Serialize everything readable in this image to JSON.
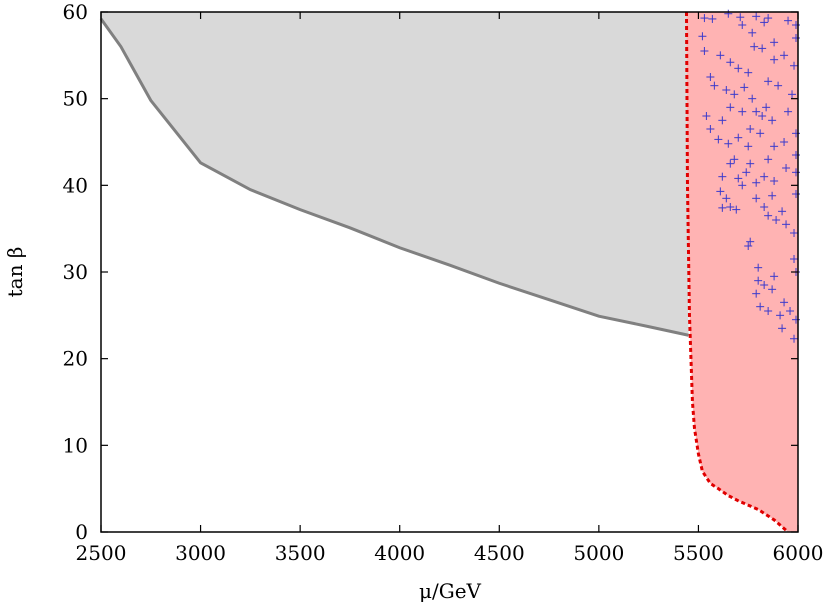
{
  "chart_data": {
    "type": "scatter",
    "x_label": "μ/GeV",
    "y_label": "tan β",
    "xlim": [
      2500,
      6000
    ],
    "ylim": [
      0,
      60
    ],
    "xticks": [
      2500,
      3000,
      3500,
      4000,
      4500,
      5000,
      5500,
      6000
    ],
    "yticks": [
      0,
      10,
      20,
      30,
      40,
      50,
      60
    ],
    "boundary": {
      "color": "#808080",
      "fill": "#d9d9d9",
      "x": [
        2500,
        2600,
        2750,
        3000,
        3250,
        3500,
        3750,
        4000,
        4250,
        4500,
        4750,
        5000,
        5250,
        5450
      ],
      "values": [
        59.2,
        56,
        49.8,
        42.6,
        39.5,
        37.2,
        35.1,
        32.8,
        30.8,
        28.7,
        26.8,
        24.9,
        23.7,
        22.7
      ]
    },
    "excluded": {
      "color": "#e00000",
      "fill": "#ffb3b3",
      "x": [
        5440,
        5445,
        5455,
        5470,
        5480,
        5500,
        5520,
        5560,
        5600,
        5650,
        5700,
        5800,
        5880,
        5950
      ],
      "values": [
        60,
        40,
        25,
        15,
        12,
        9,
        7,
        5.6,
        5,
        4.2,
        3.6,
        2.6,
        1.4,
        0
      ]
    },
    "points": {
      "color": "#3a3acc",
      "x": [
        5530,
        5570,
        5650,
        5710,
        5790,
        5850,
        5950,
        5990,
        5520,
        5720,
        5830,
        5770,
        5990,
        5880,
        5530,
        5610,
        5660,
        5780,
        5820,
        5930,
        5980,
        5700,
        5880,
        5750,
        5560,
        5580,
        5640,
        5730,
        5770,
        5850,
        5970,
        5900,
        5680,
        5790,
        5540,
        5560,
        5620,
        5660,
        5720,
        5820,
        5840,
        5870,
        5950,
        5990,
        5760,
        5600,
        5650,
        5700,
        5750,
        5810,
        5880,
        5930,
        5990,
        5680,
        5850,
        5620,
        5660,
        5700,
        5740,
        5790,
        5830,
        5880,
        5940,
        5990,
        5720,
        5760,
        5610,
        5640,
        5660,
        5690,
        5790,
        5830,
        5870,
        5920,
        5990,
        5620,
        5850,
        5940,
        5980,
        5760,
        5750,
        5890,
        5800,
        5980,
        5990,
        5880,
        5830,
        5790,
        5810,
        5850,
        5910,
        5930,
        5960,
        5990,
        5920,
        5980,
        5800,
        5870
      ],
      "values": [
        59.3,
        59.2,
        59.8,
        59.4,
        59.5,
        59.3,
        59.0,
        58.5,
        57.2,
        58.5,
        58.8,
        57.6,
        57.0,
        56.5,
        55.5,
        55.0,
        54.2,
        56.0,
        55.8,
        55.0,
        53.8,
        53.5,
        54.5,
        53.0,
        52.5,
        51.5,
        51.0,
        51.3,
        50.0,
        52.0,
        50.5,
        51.5,
        50.5,
        48.5,
        48.0,
        46.5,
        47.5,
        49.0,
        48.5,
        48.0,
        49.0,
        47.5,
        48.5,
        46.0,
        46.5,
        45.3,
        44.8,
        45.5,
        44.5,
        46.0,
        44.5,
        45.0,
        43.5,
        43.0,
        43.0,
        41.0,
        42.5,
        40.8,
        41.5,
        40.3,
        41.0,
        40.5,
        42.0,
        41.5,
        40.0,
        42.5,
        39.3,
        38.5,
        37.5,
        37.2,
        38.5,
        37.5,
        38.8,
        37.0,
        39.0,
        37.4,
        36.5,
        35.5,
        34.5,
        33.5,
        33.0,
        36.0,
        30.5,
        31.5,
        30.0,
        29.5,
        28.5,
        27.5,
        26.0,
        25.5,
        25.0,
        26.5,
        25.5,
        24.5,
        23.5,
        22.3,
        29.0,
        28.0
      ]
    }
  }
}
